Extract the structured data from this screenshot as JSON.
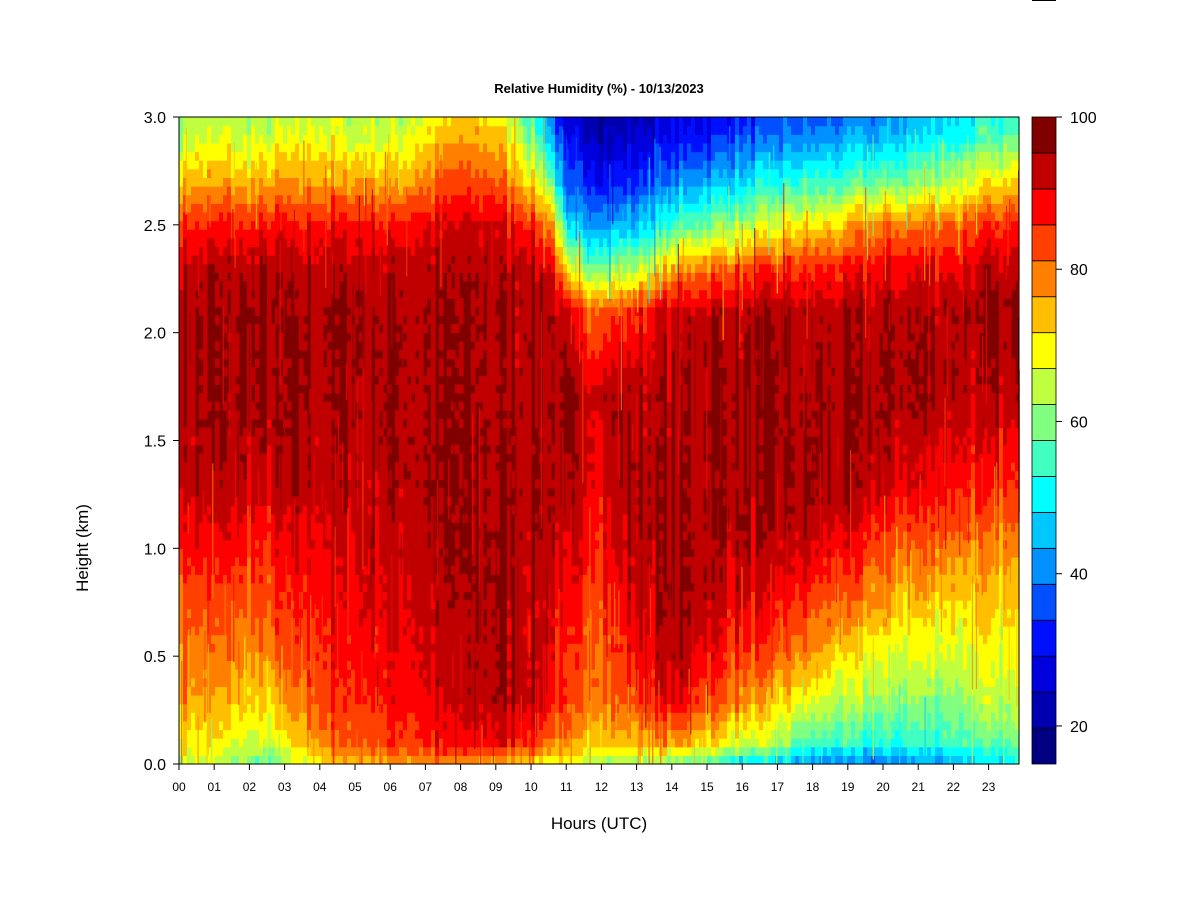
{
  "chart_data": {
    "type": "heatmap",
    "title": "Relative Humidity (%) - 10/13/2023",
    "xlabel": "Hours (UTC)",
    "ylabel": "Height (km)",
    "x_ticks": [
      "00",
      "01",
      "02",
      "03",
      "04",
      "05",
      "06",
      "07",
      "08",
      "09",
      "10",
      "11",
      "12",
      "13",
      "14",
      "15",
      "16",
      "17",
      "18",
      "19",
      "20",
      "21",
      "22",
      "23"
    ],
    "x_range": [
      0,
      24
    ],
    "y_ticks": [
      "0.0",
      "0.5",
      "1.0",
      "1.5",
      "2.0",
      "2.5",
      "3.0"
    ],
    "y_range": [
      0,
      3
    ],
    "colorbar": {
      "range": [
        15,
        100
      ],
      "step": 5,
      "ticks": [
        "20",
        "40",
        "60",
        "80",
        "100"
      ],
      "colors": [
        "#000080",
        "#0000b0",
        "#0000de",
        "#0010ff",
        "#0050ff",
        "#0090ff",
        "#00c8ff",
        "#00ffff",
        "#40ffc0",
        "#80ff80",
        "#c0ff40",
        "#ffff00",
        "#ffbf00",
        "#ff8000",
        "#ff4000",
        "#ff0000",
        "#c00000",
        "#800000"
      ]
    },
    "rh_grid": {
      "hours": [
        0,
        1,
        2,
        2.5,
        3,
        4,
        5,
        6,
        7,
        8,
        9,
        10,
        10.6,
        11,
        12,
        13,
        14,
        15,
        16,
        17,
        18,
        19,
        20,
        21,
        22,
        23,
        24
      ],
      "heights_km": [
        0,
        0.1,
        0.3,
        0.5,
        0.7,
        0.9,
        1.1,
        1.3,
        1.7,
        2.1,
        2.3,
        2.5,
        2.7,
        2.9,
        3.0
      ],
      "values": [
        [
          68,
          74,
          80,
          84,
          86,
          90,
          94,
          98,
          100,
          100,
          98,
          90,
          78,
          68,
          65
        ],
        [
          66,
          73,
          79,
          83,
          86,
          90,
          94,
          98,
          100,
          100,
          98,
          91,
          79,
          70,
          67
        ],
        [
          62,
          70,
          76,
          82,
          85,
          89,
          93,
          97,
          100,
          100,
          98,
          90,
          78,
          68,
          65
        ],
        [
          56,
          66,
          74,
          80,
          84,
          88,
          92,
          97,
          100,
          100,
          98,
          90,
          78,
          68,
          66
        ],
        [
          64,
          72,
          80,
          86,
          88,
          91,
          94,
          98,
          100,
          100,
          98,
          91,
          79,
          70,
          67
        ],
        [
          74,
          82,
          88,
          90,
          92,
          94,
          96,
          99,
          100,
          100,
          98,
          92,
          80,
          72,
          69
        ],
        [
          78,
          86,
          90,
          92,
          94,
          96,
          97,
          99,
          100,
          100,
          98,
          92,
          80,
          70,
          68
        ],
        [
          80,
          88,
          92,
          94,
          96,
          97,
          98,
          99,
          100,
          100,
          98,
          92,
          80,
          70,
          68
        ],
        [
          82,
          90,
          94,
          96,
          97,
          98,
          99,
          100,
          100,
          100,
          99,
          94,
          82,
          74,
          70
        ],
        [
          80,
          92,
          96,
          98,
          99,
          100,
          100,
          100,
          100,
          100,
          99,
          96,
          88,
          80,
          76
        ],
        [
          78,
          94,
          100,
          100,
          100,
          100,
          100,
          100,
          100,
          100,
          99,
          96,
          86,
          78,
          74
        ],
        [
          74,
          90,
          98,
          98,
          98,
          99,
          100,
          100,
          100,
          100,
          98,
          90,
          76,
          64,
          60
        ],
        [
          70,
          84,
          92,
          94,
          96,
          98,
          100,
          100,
          100,
          100,
          96,
          82,
          62,
          46,
          40
        ],
        [
          68,
          80,
          86,
          88,
          90,
          92,
          94,
          96,
          99,
          92,
          70,
          50,
          36,
          28,
          26
        ],
        [
          66,
          78,
          84,
          86,
          88,
          92,
          94,
          97,
          99,
          86,
          62,
          44,
          32,
          25,
          23
        ],
        [
          64,
          78,
          88,
          92,
          96,
          98,
          100,
          100,
          99,
          90,
          66,
          48,
          34,
          26,
          24
        ],
        [
          62,
          80,
          94,
          98,
          100,
          100,
          100,
          100,
          100,
          96,
          78,
          56,
          40,
          30,
          27
        ],
        [
          58,
          76,
          88,
          94,
          98,
          100,
          100,
          100,
          100,
          98,
          84,
          62,
          46,
          34,
          30
        ],
        [
          50,
          70,
          82,
          88,
          94,
          98,
          100,
          100,
          100,
          98,
          86,
          66,
          50,
          38,
          33
        ],
        [
          46,
          64,
          76,
          84,
          90,
          96,
          99,
          100,
          100,
          98,
          88,
          70,
          54,
          40,
          36
        ],
        [
          42,
          58,
          70,
          80,
          86,
          92,
          98,
          100,
          100,
          98,
          90,
          74,
          56,
          42,
          38
        ],
        [
          40,
          56,
          66,
          74,
          82,
          88,
          94,
          99,
          100,
          99,
          92,
          78,
          58,
          44,
          40
        ],
        [
          38,
          54,
          64,
          70,
          78,
          84,
          90,
          97,
          100,
          99,
          93,
          82,
          60,
          46,
          42
        ],
        [
          42,
          56,
          64,
          70,
          76,
          82,
          88,
          94,
          100,
          100,
          94,
          84,
          64,
          50,
          46
        ],
        [
          46,
          58,
          64,
          70,
          74,
          80,
          86,
          92,
          99,
          100,
          95,
          86,
          68,
          54,
          50
        ],
        [
          48,
          58,
          66,
          70,
          74,
          78,
          84,
          90,
          98,
          100,
          96,
          88,
          72,
          58,
          54
        ],
        [
          50,
          60,
          66,
          70,
          74,
          78,
          84,
          88,
          96,
          100,
          96,
          88,
          74,
          60,
          56
        ]
      ]
    },
    "grid": false,
    "legend": "colorbar-right"
  }
}
